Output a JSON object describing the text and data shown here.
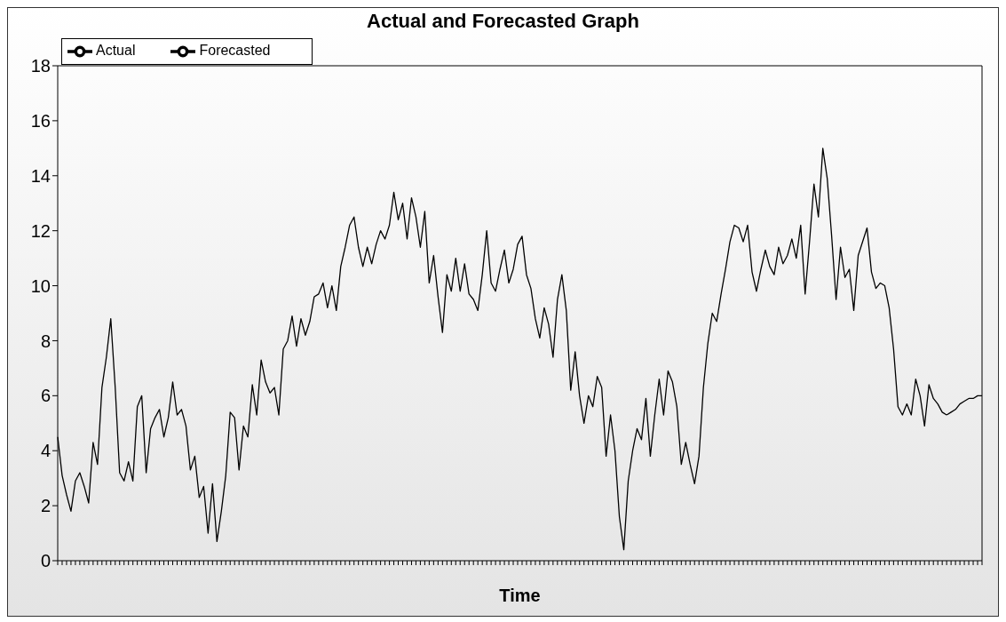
{
  "chart_data": {
    "type": "line",
    "title": "Actual and Forecasted Graph",
    "xlabel": "Time",
    "legend": "top left",
    "marker": "none",
    "line_style": "solid",
    "tick_labels": "y",
    "ylim": [
      0,
      18
    ],
    "yticks": [
      0,
      2,
      4,
      6,
      8,
      10,
      12,
      14,
      16,
      18
    ],
    "categories": [
      null,
      null,
      null,
      null,
      null,
      null,
      null,
      null,
      null,
      null,
      null,
      null,
      null,
      null,
      null,
      null,
      null,
      null,
      null,
      null,
      null,
      null,
      null,
      null,
      null,
      null,
      null,
      null,
      null,
      null,
      null,
      null,
      null,
      null,
      null,
      null,
      null,
      null,
      null,
      null,
      null,
      null,
      null,
      null,
      null,
      null,
      null,
      null,
      null,
      null,
      null,
      null,
      null,
      null,
      null,
      null,
      null,
      null,
      null,
      null,
      null,
      null,
      null,
      null,
      null,
      null,
      null,
      null,
      null,
      null,
      null,
      null,
      null,
      null,
      null,
      null,
      null,
      null,
      null,
      null,
      null,
      null,
      null,
      null,
      null,
      null,
      null,
      null,
      null,
      null,
      null,
      null,
      null,
      null,
      null,
      null,
      null,
      null,
      null,
      null,
      null,
      null,
      null,
      null,
      null,
      null,
      null,
      null,
      null,
      null,
      null,
      null,
      null,
      null,
      null,
      null,
      null,
      null,
      null,
      null,
      null,
      null,
      null,
      null,
      null,
      null,
      null,
      null,
      null,
      null,
      null,
      null,
      null,
      null,
      null,
      null,
      null,
      null,
      null,
      null,
      null,
      null,
      null,
      null,
      null,
      null,
      null,
      null,
      null,
      null,
      null,
      null,
      null,
      null,
      null,
      null,
      null,
      null,
      null,
      null,
      null,
      null,
      null,
      null,
      null,
      null,
      null,
      null,
      null,
      null,
      null,
      null,
      null,
      null,
      null,
      null,
      null,
      null,
      null,
      null,
      null,
      null,
      null,
      null,
      null,
      null,
      null,
      null,
      null,
      null,
      null,
      null,
      null,
      null,
      null,
      null,
      null,
      null,
      null,
      null,
      null,
      null,
      null,
      null,
      null,
      null,
      null,
      null,
      null,
      null
    ],
    "series": [
      {
        "name": "Actual",
        "color": "#000000",
        "values": [
          4.5,
          3.1,
          2.4,
          1.8,
          2.9,
          3.2,
          2.7,
          2.1,
          4.3,
          3.5,
          6.3,
          7.4,
          8.8,
          6.3,
          3.2,
          2.9,
          3.6,
          2.9,
          5.6,
          6.0,
          3.2,
          4.8,
          5.2,
          5.5,
          4.5,
          5.2,
          6.5,
          5.3,
          5.5,
          4.9,
          3.3,
          3.8,
          2.3,
          2.7,
          1.0,
          2.8,
          0.7,
          1.8,
          3.1,
          5.4,
          5.2,
          3.3,
          4.9,
          4.5,
          6.4,
          5.3,
          7.3,
          6.5,
          6.1,
          6.3,
          5.3,
          7.7,
          8.0,
          8.9,
          7.8,
          8.8,
          8.2,
          8.7,
          9.6,
          9.7,
          10.1,
          9.2,
          10.0,
          9.1,
          10.7,
          11.4,
          12.2,
          12.5,
          11.4,
          10.7,
          11.4,
          10.8,
          11.5,
          12.0,
          11.7,
          12.2,
          13.4,
          12.4,
          13.0,
          11.7,
          13.2,
          12.5,
          11.4,
          12.7,
          10.1,
          11.1,
          9.6,
          8.3,
          10.4,
          9.8,
          11.0,
          9.8,
          10.8,
          9.7,
          9.5,
          9.1,
          10.4,
          12.0,
          10.1,
          9.8,
          10.6,
          11.3,
          10.1,
          10.6,
          11.5,
          11.8,
          10.4,
          9.9,
          8.8,
          8.1,
          9.2,
          8.6,
          7.4,
          9.5,
          10.4,
          9.1,
          6.2,
          7.6,
          6.0,
          5.0,
          6.0,
          5.6,
          6.7,
          6.3,
          3.8,
          5.3,
          4.0,
          1.6,
          0.4,
          2.9,
          4.0,
          4.8,
          4.4,
          5.9,
          3.8,
          5.3,
          6.6,
          5.3,
          6.9,
          6.5,
          5.6,
          3.5,
          4.3,
          3.5,
          2.8,
          3.8,
          6.3,
          7.9,
          9.0,
          8.7,
          9.7,
          10.6,
          11.6,
          12.2,
          12.1,
          11.6,
          12.2,
          10.5,
          9.8,
          10.6,
          11.3,
          10.7,
          10.4,
          11.4,
          10.8,
          11.1,
          11.7,
          11.0,
          12.2,
          9.7,
          11.6,
          13.7,
          12.5,
          15.0,
          13.9,
          11.8,
          9.5,
          11.4,
          10.3,
          10.6,
          9.1,
          11.1,
          11.6,
          12.1,
          10.5,
          9.9,
          10.1,
          10.0,
          9.2,
          7.7,
          5.6,
          5.3,
          5.7,
          5.3,
          6.6,
          6.0,
          4.9,
          6.4,
          5.9,
          5.7,
          5.4,
          5.3,
          null,
          null,
          null,
          null,
          null,
          null,
          null,
          null
        ]
      },
      {
        "name": "Forecasted",
        "color": "#000000",
        "values": [
          null,
          null,
          null,
          null,
          null,
          null,
          null,
          null,
          null,
          null,
          null,
          null,
          null,
          null,
          null,
          null,
          null,
          null,
          null,
          null,
          null,
          null,
          null,
          null,
          null,
          null,
          null,
          null,
          null,
          null,
          null,
          null,
          null,
          null,
          null,
          null,
          null,
          null,
          null,
          null,
          null,
          null,
          null,
          null,
          null,
          null,
          null,
          null,
          null,
          null,
          null,
          null,
          null,
          null,
          null,
          null,
          null,
          null,
          null,
          null,
          null,
          null,
          null,
          null,
          null,
          null,
          null,
          null,
          null,
          null,
          null,
          null,
          null,
          null,
          null,
          null,
          null,
          null,
          null,
          null,
          null,
          null,
          null,
          null,
          null,
          null,
          null,
          null,
          null,
          null,
          null,
          null,
          null,
          null,
          null,
          null,
          null,
          null,
          null,
          null,
          null,
          null,
          null,
          null,
          null,
          null,
          null,
          null,
          null,
          null,
          null,
          null,
          null,
          null,
          null,
          null,
          null,
          null,
          null,
          null,
          null,
          null,
          null,
          null,
          null,
          null,
          null,
          null,
          null,
          null,
          null,
          null,
          null,
          null,
          null,
          null,
          null,
          null,
          null,
          null,
          null,
          null,
          null,
          null,
          null,
          null,
          null,
          null,
          null,
          null,
          null,
          null,
          null,
          null,
          null,
          null,
          null,
          null,
          null,
          null,
          null,
          null,
          null,
          null,
          null,
          null,
          null,
          null,
          null,
          null,
          null,
          null,
          null,
          null,
          null,
          null,
          null,
          null,
          null,
          null,
          null,
          null,
          null,
          null,
          null,
          null,
          null,
          null,
          null,
          null,
          null,
          null,
          null,
          null,
          null,
          null,
          null,
          null,
          null,
          null,
          null,
          5.3,
          5.4,
          5.5,
          5.7,
          5.8,
          5.9,
          5.9,
          6.0,
          6.0
        ]
      }
    ]
  }
}
